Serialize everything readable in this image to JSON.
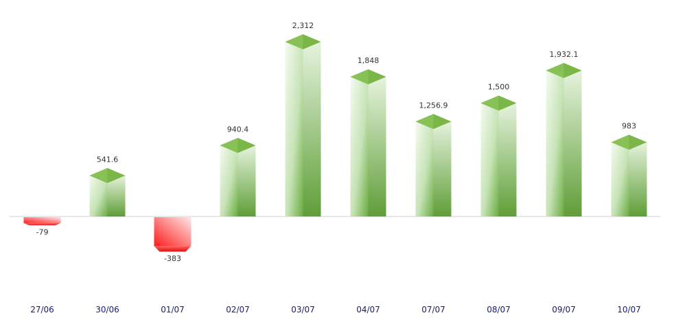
{
  "chart_data": {
    "type": "bar",
    "style": "3d-column",
    "categories": [
      "27/06",
      "30/06",
      "01/07",
      "02/07",
      "03/07",
      "04/07",
      "07/07",
      "08/07",
      "09/07",
      "10/07"
    ],
    "values": [
      -79,
      541.6,
      -383,
      940.4,
      2312,
      1848,
      1256.9,
      1500,
      1932.1,
      983
    ],
    "value_labels": [
      "-79",
      "541.6",
      "-383",
      "940.4",
      "2,312",
      "1,848",
      "1,256.9",
      "1,500",
      "1,932.1",
      "983"
    ],
    "title": "",
    "xlabel": "",
    "ylabel": "",
    "grid": false,
    "legend": "none",
    "colors": {
      "positive_front_light": "#f3faf0",
      "positive_front_dark": "#6aad42",
      "positive_side": "#5f9e38",
      "positive_top": "#7ab648",
      "negative_front_light": "#fde4e4",
      "negative_front_dark": "#ff2020",
      "negative_side": "#e81818",
      "negative_top": "#ff3030",
      "baseline": "#d0d0d0",
      "category_text": "#1a1a6e",
      "value_text": "#333333"
    }
  }
}
